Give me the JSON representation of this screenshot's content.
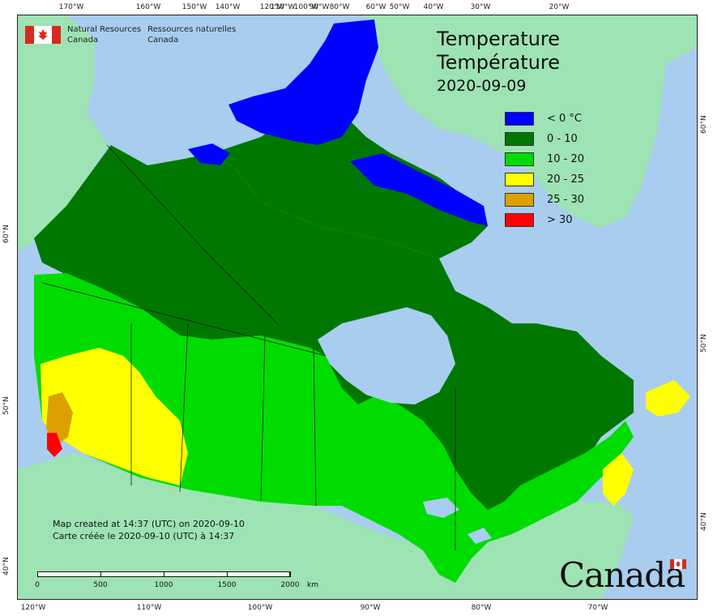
{
  "org": {
    "name_en_line1": "Natural Resources",
    "name_en_line2": "Canada",
    "name_fr_line1": "Ressources naturelles",
    "name_fr_line2": "Canada"
  },
  "title": {
    "line1": "Temperature",
    "line2": "Température",
    "date": "2020-09-09"
  },
  "legend": [
    {
      "label": "< 0 °C",
      "color": "#0000ff"
    },
    {
      "label": "0 - 10",
      "color": "#007800"
    },
    {
      "label": "10 - 20",
      "color": "#00dc00"
    },
    {
      "label": "20 - 25",
      "color": "#ffff00"
    },
    {
      "label": "25 - 30",
      "color": "#dca000"
    },
    {
      "label": "> 30",
      "color": "#ff0000"
    }
  ],
  "credit": {
    "line_en": "Map created at 14:37 (UTC) on 2020-09-10",
    "line_fr": "Carte créée le 2020-09-10 (UTC) à 14:37"
  },
  "scale": {
    "labels": [
      "0",
      "500",
      "1000",
      "1500",
      "2000"
    ],
    "unit": "km"
  },
  "graticule": {
    "top": [
      "170°W",
      "160°W",
      "150°W",
      "140°W",
      "120°W",
      "110°W",
      "100°W",
      "90°W",
      "80°W",
      "60°W",
      "50°W",
      "40°W",
      "30°W",
      "20°W"
    ],
    "bottom": [
      "120°W",
      "110°W",
      "100°W",
      "90°W",
      "80°W",
      "70°W"
    ],
    "left": [
      "60°N",
      "50°N",
      "40°N"
    ],
    "right": [
      "60°N",
      "50°N",
      "40°N"
    ]
  },
  "wordmark": "Canada",
  "colors": {
    "water": "#a9cdee",
    "foreign_land": "#9ee3b4",
    "border_lines": "#1a1a1a"
  }
}
